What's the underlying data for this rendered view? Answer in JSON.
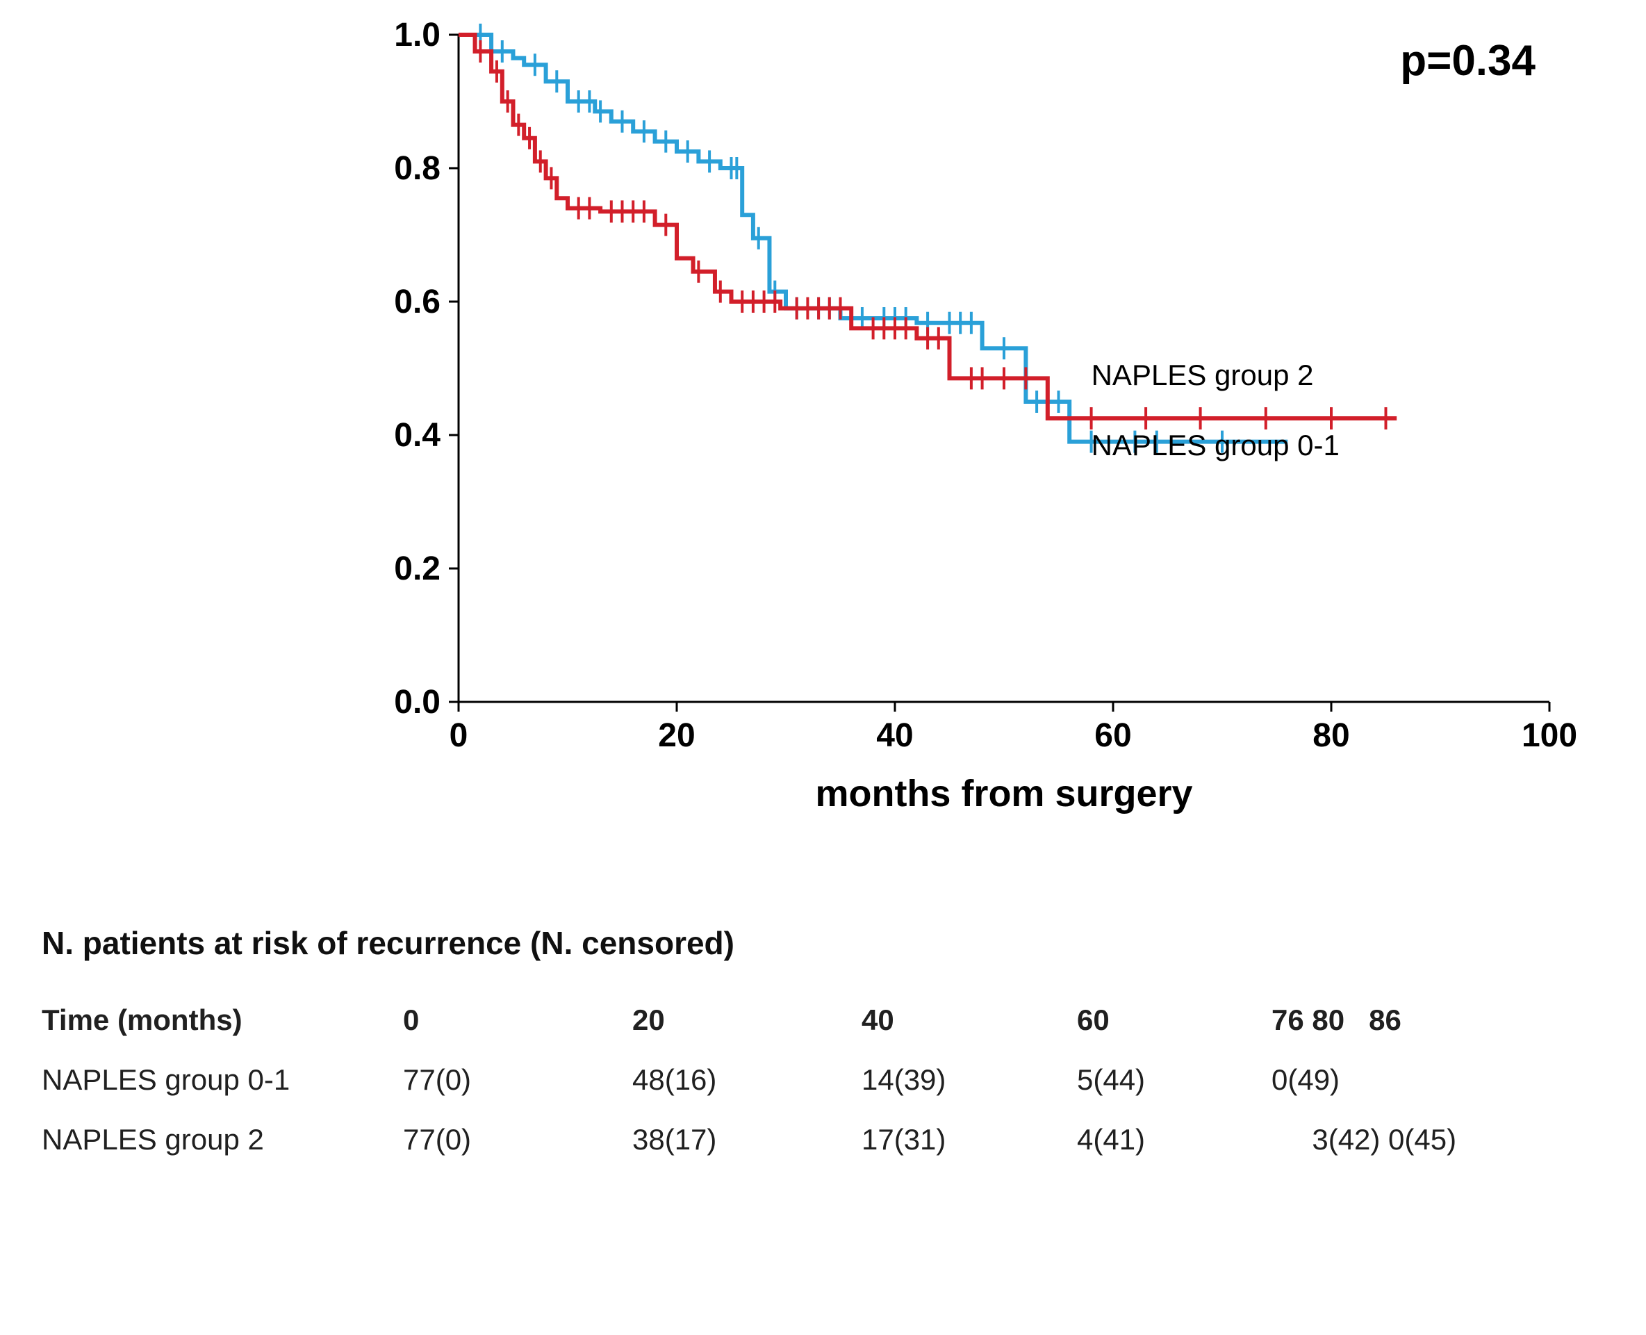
{
  "chart": {
    "type": "kaplan_meier",
    "background_color": "#ffffff",
    "axis_color": "#000000",
    "tick_color": "#000000",
    "line_width": 6,
    "censor_tick_len": 16,
    "axis_line_width": 3,
    "font_family": "Arial",
    "xlabel": "months from surgery",
    "xlabel_fontsize": 54,
    "xlabel_fontweight": "700",
    "p_value_text": "p=0.34",
    "p_value_fontsize": 62,
    "p_value_fontweight": "700",
    "y": {
      "lim": [
        0.0,
        1.0
      ],
      "ticks": [
        0.0,
        0.2,
        0.4,
        0.6,
        0.8,
        1.0
      ],
      "tick_labels": [
        "0.0",
        "0.2",
        "0.4",
        "0.6",
        "0.8",
        "1.0"
      ],
      "tick_fontsize": 48,
      "tick_fontweight": "700"
    },
    "x": {
      "lim": [
        0,
        100
      ],
      "ticks": [
        0,
        20,
        40,
        60,
        80,
        100
      ],
      "tick_labels": [
        "0",
        "20",
        "40",
        "60",
        "80",
        "100"
      ],
      "tick_fontsize": 48,
      "tick_fontweight": "700"
    },
    "series": [
      {
        "id": "group01",
        "label": "NAPLES group 0-1",
        "color": "#2aa0d8",
        "inline_label_xy": [
          58,
          0.37
        ],
        "inline_label_fontsize": 42,
        "steps": [
          [
            0.0,
            1.0
          ],
          [
            3.0,
            1.0
          ],
          [
            3.0,
            0.975
          ],
          [
            5.0,
            0.975
          ],
          [
            5.0,
            0.965
          ],
          [
            6.0,
            0.965
          ],
          [
            6.0,
            0.955
          ],
          [
            8.0,
            0.955
          ],
          [
            8.0,
            0.93
          ],
          [
            10.0,
            0.93
          ],
          [
            10.0,
            0.9
          ],
          [
            12.5,
            0.9
          ],
          [
            12.5,
            0.885
          ],
          [
            14.0,
            0.885
          ],
          [
            14.0,
            0.87
          ],
          [
            15.0,
            0.87
          ],
          [
            16.0,
            0.87
          ],
          [
            16.0,
            0.855
          ],
          [
            18.0,
            0.855
          ],
          [
            18.0,
            0.84
          ],
          [
            20.0,
            0.84
          ],
          [
            20.0,
            0.825
          ],
          [
            22.0,
            0.825
          ],
          [
            22.0,
            0.81
          ],
          [
            24.0,
            0.81
          ],
          [
            24.0,
            0.8
          ],
          [
            26.0,
            0.8
          ],
          [
            26.0,
            0.73
          ],
          [
            27.0,
            0.73
          ],
          [
            27.0,
            0.695
          ],
          [
            28.5,
            0.695
          ],
          [
            28.5,
            0.615
          ],
          [
            30.0,
            0.615
          ],
          [
            30.0,
            0.59
          ],
          [
            35.0,
            0.59
          ],
          [
            35.0,
            0.575
          ],
          [
            42.0,
            0.575
          ],
          [
            42.0,
            0.568
          ],
          [
            44.0,
            0.568
          ],
          [
            48.0,
            0.568
          ],
          [
            48.0,
            0.53
          ],
          [
            52.0,
            0.53
          ],
          [
            52.0,
            0.45
          ],
          [
            56.0,
            0.45
          ],
          [
            56.0,
            0.39
          ],
          [
            76.0,
            0.39
          ]
        ],
        "censors": [
          [
            2,
            1.0
          ],
          [
            4,
            0.975
          ],
          [
            7,
            0.955
          ],
          [
            9,
            0.93
          ],
          [
            11,
            0.9
          ],
          [
            12,
            0.9
          ],
          [
            13,
            0.885
          ],
          [
            15,
            0.87
          ],
          [
            17,
            0.855
          ],
          [
            19,
            0.84
          ],
          [
            21,
            0.825
          ],
          [
            23,
            0.81
          ],
          [
            25,
            0.8
          ],
          [
            25.5,
            0.8
          ],
          [
            27.5,
            0.695
          ],
          [
            29,
            0.615
          ],
          [
            31,
            0.59
          ],
          [
            33,
            0.59
          ],
          [
            34,
            0.59
          ],
          [
            37,
            0.575
          ],
          [
            39,
            0.575
          ],
          [
            40,
            0.575
          ],
          [
            41,
            0.575
          ],
          [
            43,
            0.568
          ],
          [
            45,
            0.568
          ],
          [
            46,
            0.568
          ],
          [
            47,
            0.568
          ],
          [
            50,
            0.53
          ],
          [
            53,
            0.45
          ],
          [
            55,
            0.45
          ],
          [
            58,
            0.39
          ],
          [
            62,
            0.39
          ],
          [
            64,
            0.39
          ],
          [
            70,
            0.39
          ]
        ]
      },
      {
        "id": "group2",
        "label": "NAPLES group 2",
        "color": "#d21f2a",
        "inline_label_xy": [
          58,
          0.475
        ],
        "inline_label_fontsize": 42,
        "steps": [
          [
            0.0,
            1.0
          ],
          [
            1.5,
            1.0
          ],
          [
            1.5,
            0.975
          ],
          [
            3.0,
            0.975
          ],
          [
            3.0,
            0.945
          ],
          [
            4.0,
            0.945
          ],
          [
            4.0,
            0.9
          ],
          [
            5.0,
            0.9
          ],
          [
            5.0,
            0.865
          ],
          [
            6.0,
            0.865
          ],
          [
            6.0,
            0.845
          ],
          [
            7.0,
            0.845
          ],
          [
            7.0,
            0.81
          ],
          [
            8.0,
            0.81
          ],
          [
            8.0,
            0.785
          ],
          [
            9.0,
            0.785
          ],
          [
            9.0,
            0.755
          ],
          [
            10.0,
            0.755
          ],
          [
            10.0,
            0.74
          ],
          [
            13.0,
            0.74
          ],
          [
            13.0,
            0.735
          ],
          [
            18.0,
            0.735
          ],
          [
            18.0,
            0.715
          ],
          [
            20.0,
            0.715
          ],
          [
            20.0,
            0.665
          ],
          [
            21.5,
            0.665
          ],
          [
            21.5,
            0.645
          ],
          [
            23.5,
            0.645
          ],
          [
            23.5,
            0.615
          ],
          [
            25.0,
            0.615
          ],
          [
            25.0,
            0.6
          ],
          [
            29.5,
            0.6
          ],
          [
            29.5,
            0.59
          ],
          [
            36.0,
            0.59
          ],
          [
            36.0,
            0.56
          ],
          [
            42.0,
            0.56
          ],
          [
            42.0,
            0.545
          ],
          [
            45.0,
            0.545
          ],
          [
            45.0,
            0.485
          ],
          [
            54.0,
            0.485
          ],
          [
            54.0,
            0.425
          ],
          [
            86.0,
            0.425
          ]
        ],
        "censors": [
          [
            2,
            0.975
          ],
          [
            3.5,
            0.945
          ],
          [
            4.5,
            0.9
          ],
          [
            5.5,
            0.865
          ],
          [
            6.5,
            0.845
          ],
          [
            7.5,
            0.81
          ],
          [
            8.5,
            0.785
          ],
          [
            11,
            0.74
          ],
          [
            12,
            0.74
          ],
          [
            14,
            0.735
          ],
          [
            15,
            0.735
          ],
          [
            16,
            0.735
          ],
          [
            17,
            0.735
          ],
          [
            19,
            0.715
          ],
          [
            22,
            0.645
          ],
          [
            24,
            0.615
          ],
          [
            26,
            0.6
          ],
          [
            27,
            0.6
          ],
          [
            28,
            0.6
          ],
          [
            29,
            0.6
          ],
          [
            31,
            0.59
          ],
          [
            32,
            0.59
          ],
          [
            33,
            0.59
          ],
          [
            34,
            0.59
          ],
          [
            35,
            0.59
          ],
          [
            38,
            0.56
          ],
          [
            39,
            0.56
          ],
          [
            40,
            0.56
          ],
          [
            41,
            0.56
          ],
          [
            43,
            0.545
          ],
          [
            44,
            0.545
          ],
          [
            47,
            0.485
          ],
          [
            48,
            0.485
          ],
          [
            50,
            0.485
          ],
          [
            52,
            0.485
          ],
          [
            58,
            0.425
          ],
          [
            63,
            0.425
          ],
          [
            68,
            0.425
          ],
          [
            74,
            0.425
          ],
          [
            80,
            0.425
          ],
          [
            85,
            0.425
          ]
        ]
      }
    ]
  },
  "risk_table": {
    "title": "N. patients at risk of recurrence (N. censored)",
    "header_label": "Time (months)",
    "header_cells": [
      "0",
      "20",
      "40",
      "60"
    ],
    "header_tail": "76 80   86",
    "rows": [
      {
        "label": "NAPLES  group 0-1",
        "cells": [
          "77(0)",
          "48(16)",
          "14(39)",
          "5(44)"
        ],
        "tail": "0(49)"
      },
      {
        "label": "NAPLES  group 2",
        "cells": [
          "77(0)",
          "38(17)",
          "17(31)",
          "4(41)"
        ],
        "tail": "     3(42) 0(45)"
      }
    ],
    "title_fontsize": 46,
    "fontsize": 42,
    "text_color": "#202020"
  }
}
